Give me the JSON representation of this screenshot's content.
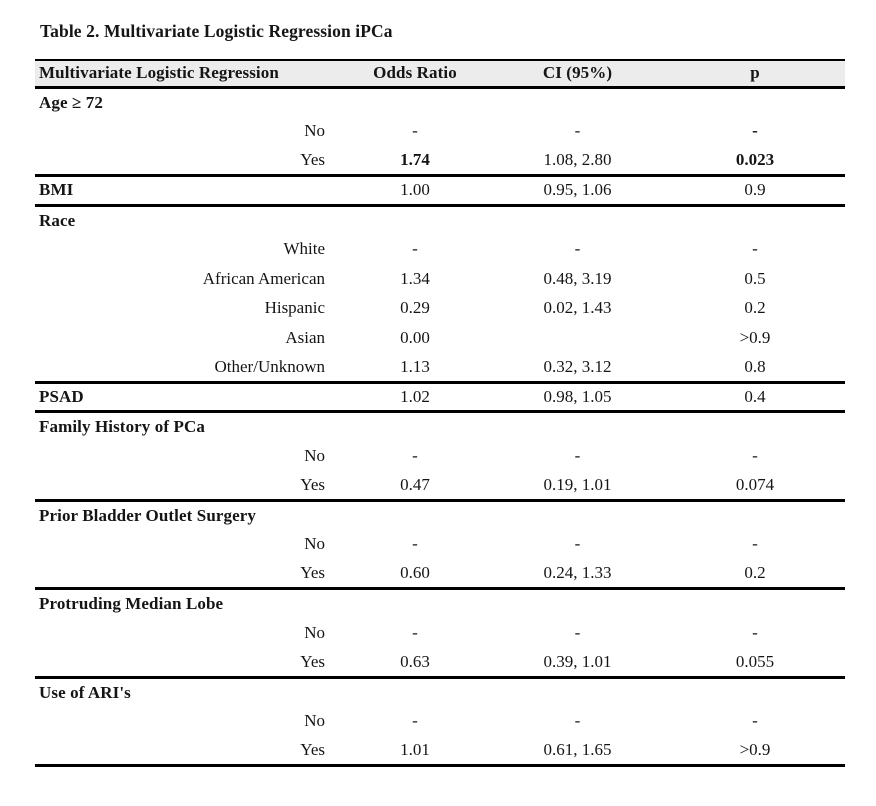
{
  "title": "Table 2. Multivariate Logistic Regression iPCa",
  "colors": {
    "header_bg": "#ececec",
    "rule": "#000000",
    "text": "#151515",
    "page_bg": "#ffffff"
  },
  "table": {
    "columns": [
      "Multivariate Logistic Regression",
      "Odds Ratio",
      "CI (95%)",
      "p"
    ],
    "groups": [
      {
        "rows": [
          {
            "label": "Age ≥ 72",
            "section": true
          },
          {
            "label": "No",
            "section": false,
            "or": "-",
            "ci": "-",
            "p": "-",
            "p_bold": true
          },
          {
            "label": "Yes",
            "section": false,
            "or": "1.74",
            "or_bold": true,
            "ci": "1.08, 2.80",
            "p": "0.023",
            "p_bold": true
          }
        ]
      },
      {
        "rows": [
          {
            "label": "BMI",
            "section": true,
            "or": "1.00",
            "ci": "0.95, 1.06",
            "p": "0.9"
          }
        ]
      },
      {
        "rows": [
          {
            "label": "Race",
            "section": true
          },
          {
            "label": "White",
            "section": false,
            "or": "-",
            "ci": "-",
            "p": "-"
          },
          {
            "label": "African American",
            "section": false,
            "or": "1.34",
            "ci": "0.48, 3.19",
            "p": "0.5"
          },
          {
            "label": "Hispanic",
            "section": false,
            "or": "0.29",
            "ci": "0.02, 1.43",
            "p": "0.2"
          },
          {
            "label": "Asian",
            "section": false,
            "or": "0.00",
            "ci": "",
            "p": ">0.9"
          },
          {
            "label": "Other/Unknown",
            "section": false,
            "or": "1.13",
            "ci": "0.32, 3.12",
            "p": "0.8"
          }
        ]
      },
      {
        "rows": [
          {
            "label": "PSAD",
            "section": true,
            "or": "1.02",
            "ci": "0.98, 1.05",
            "p": "0.4"
          }
        ]
      },
      {
        "rows": [
          {
            "label": "Family History of PCa",
            "section": true
          },
          {
            "label": "No",
            "section": false,
            "or": "-",
            "ci": "-",
            "p": "-"
          },
          {
            "label": "Yes",
            "section": false,
            "or": "0.47",
            "ci": "0.19, 1.01",
            "p": "0.074"
          }
        ]
      },
      {
        "rows": [
          {
            "label": "Prior Bladder Outlet Surgery",
            "section": true
          },
          {
            "label": "No",
            "section": false,
            "or": "-",
            "ci": "-",
            "p": "-"
          },
          {
            "label": "Yes",
            "section": false,
            "or": "0.60",
            "ci": "0.24, 1.33",
            "p": "0.2"
          }
        ]
      },
      {
        "rows": [
          {
            "label": "Protruding Median Lobe",
            "section": true
          },
          {
            "label": "No",
            "section": false,
            "or": "-",
            "ci": "-",
            "p": "-"
          },
          {
            "label": "Yes",
            "section": false,
            "or": "0.63",
            "ci": "0.39, 1.01",
            "p": "0.055"
          }
        ]
      },
      {
        "rows": [
          {
            "label": "Use of ARI's",
            "section": true
          },
          {
            "label": "No",
            "section": false,
            "or": "-",
            "ci": "-",
            "p": "-"
          },
          {
            "label": "Yes",
            "section": false,
            "or": "1.01",
            "ci": "0.61, 1.65",
            "p": ">0.9"
          }
        ]
      }
    ]
  }
}
